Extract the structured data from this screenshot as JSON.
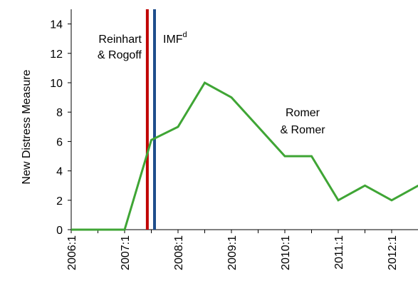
{
  "chart_data": {
    "type": "line",
    "y_label": "New Distress Measure",
    "categories": [
      "2006:1",
      null,
      "2007:1",
      null,
      "2008:1",
      null,
      "2009:1",
      null,
      "2010:1",
      null,
      "2011:1",
      null,
      "2012:1",
      null
    ],
    "series": [
      {
        "name": "Romer & Romer",
        "label_lines": [
          "Romer",
          "& Romer"
        ],
        "color": "#3fa535",
        "values": [
          0,
          0,
          0,
          6.1,
          7,
          10,
          9,
          7,
          5,
          5,
          2,
          3,
          2,
          3
        ]
      }
    ],
    "ylim": [
      0,
      15
    ],
    "yticks": [
      0,
      2,
      4,
      6,
      8,
      10,
      12,
      14
    ],
    "markers": [
      {
        "label_lines": [
          "Reinhart",
          "& Rogoff"
        ],
        "color": "#c00000",
        "x": 2.85
      },
      {
        "label": "IMF",
        "superscript": "d",
        "color": "#1f4e8c",
        "x": 3.12
      }
    ]
  }
}
